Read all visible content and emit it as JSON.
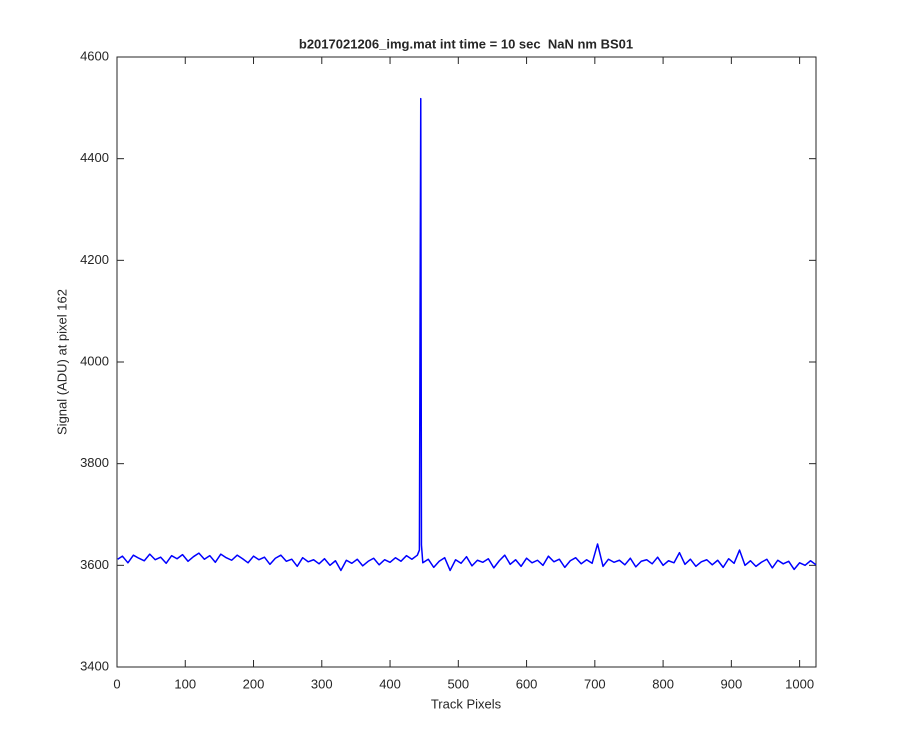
{
  "chart_data": {
    "type": "line",
    "title": "b2017021206_img.mat int time = 10 sec  NaN nm BS01",
    "x_label": "Track Pixels",
    "y_label": "Signal (ADU) at pixel 162",
    "xlim": [
      0,
      1024
    ],
    "ylim": [
      3400,
      4600
    ],
    "xticks": [
      0,
      100,
      200,
      300,
      400,
      500,
      600,
      700,
      800,
      900,
      1000
    ],
    "yticks": [
      3400,
      3600,
      3800,
      4000,
      4200,
      4400,
      4600
    ],
    "grid": false,
    "x": [
      1,
      8,
      16,
      24,
      32,
      40,
      48,
      56,
      64,
      72,
      80,
      88,
      96,
      104,
      112,
      120,
      128,
      136,
      144,
      152,
      160,
      168,
      176,
      184,
      192,
      200,
      208,
      216,
      224,
      232,
      240,
      248,
      256,
      264,
      272,
      280,
      288,
      296,
      304,
      312,
      320,
      328,
      336,
      344,
      352,
      360,
      368,
      376,
      384,
      392,
      400,
      408,
      416,
      424,
      432,
      440,
      443,
      444,
      445,
      446,
      448,
      456,
      464,
      472,
      480,
      488,
      496,
      504,
      512,
      520,
      528,
      536,
      544,
      552,
      560,
      568,
      576,
      584,
      592,
      600,
      608,
      616,
      624,
      632,
      640,
      648,
      656,
      664,
      672,
      680,
      688,
      696,
      704,
      712,
      720,
      728,
      736,
      744,
      752,
      760,
      768,
      776,
      784,
      792,
      800,
      808,
      816,
      824,
      832,
      840,
      848,
      856,
      864,
      872,
      880,
      888,
      896,
      904,
      912,
      920,
      928,
      936,
      944,
      952,
      960,
      968,
      976,
      984,
      992,
      1000,
      1008,
      1016,
      1024
    ],
    "series": [
      {
        "color": "#0000ff",
        "values": [
          3612,
          3618,
          3605,
          3620,
          3614,
          3609,
          3622,
          3611,
          3616,
          3604,
          3619,
          3613,
          3621,
          3608,
          3617,
          3624,
          3612,
          3619,
          3606,
          3622,
          3615,
          3610,
          3620,
          3613,
          3605,
          3618,
          3611,
          3616,
          3602,
          3614,
          3620,
          3608,
          3612,
          3598,
          3615,
          3607,
          3611,
          3603,
          3613,
          3600,
          3609,
          3590,
          3610,
          3604,
          3612,
          3599,
          3608,
          3614,
          3601,
          3611,
          3606,
          3615,
          3608,
          3619,
          3612,
          3620,
          3630,
          4100,
          4518,
          3640,
          3605,
          3612,
          3596,
          3608,
          3615,
          3590,
          3611,
          3604,
          3617,
          3599,
          3610,
          3606,
          3613,
          3595,
          3609,
          3620,
          3602,
          3611,
          3598,
          3614,
          3605,
          3610,
          3600,
          3618,
          3607,
          3612,
          3596,
          3609,
          3615,
          3603,
          3611,
          3604,
          3642,
          3598,
          3612,
          3606,
          3610,
          3601,
          3614,
          3597,
          3608,
          3611,
          3603,
          3616,
          3600,
          3609,
          3605,
          3625,
          3602,
          3612,
          3598,
          3607,
          3611,
          3601,
          3610,
          3596,
          3613,
          3604,
          3630,
          3600,
          3609,
          3598,
          3606,
          3612,
          3595,
          3610,
          3603,
          3608,
          3592,
          3605,
          3600,
          3609,
          3601
        ]
      }
    ]
  }
}
